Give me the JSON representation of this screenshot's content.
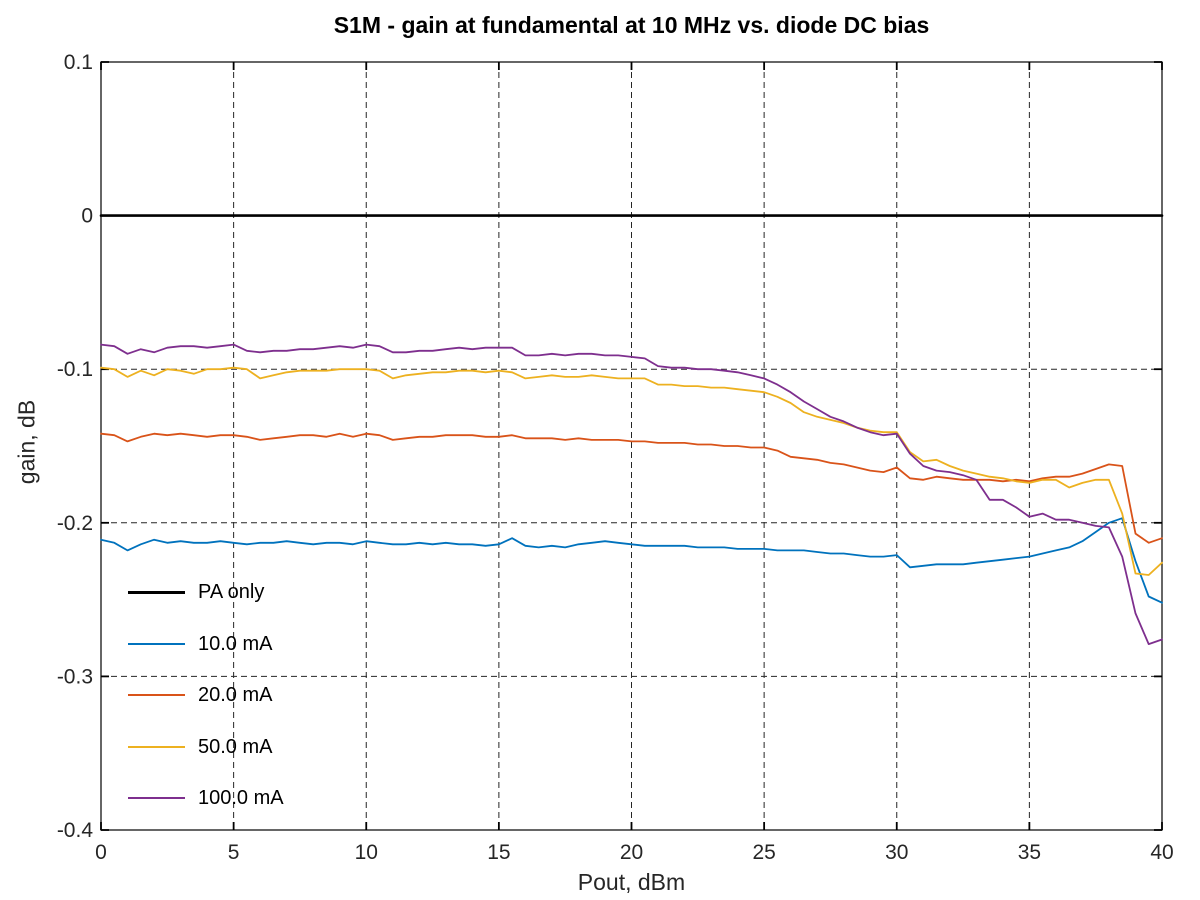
{
  "chart_data": {
    "type": "line",
    "title": "S1M - gain at fundamental at 10 MHz vs. diode DC bias",
    "xlabel": "Pout, dBm",
    "ylabel": "gain, dB",
    "xlim": [
      0,
      40
    ],
    "ylim": [
      -0.4,
      0.1
    ],
    "x_ticks": [
      0,
      5,
      10,
      15,
      20,
      25,
      30,
      35,
      40
    ],
    "y_ticks": [
      {
        "v": 0.1,
        "label": "0.1"
      },
      {
        "v": 0,
        "label": "0"
      },
      {
        "v": -0.1,
        "label": "-0.1"
      },
      {
        "v": -0.2,
        "label": "-0.2"
      },
      {
        "v": -0.3,
        "label": "-0.3"
      },
      {
        "v": -0.4,
        "label": "-0.4"
      }
    ],
    "grid": {
      "x_lines": [
        5,
        10,
        15,
        20,
        25,
        30,
        35
      ],
      "y_lines": [
        -0.1,
        -0.2,
        -0.3
      ],
      "line_style": "dashed",
      "color": "#262626"
    },
    "axis_color": "#000000",
    "tick_label_color": "#262626",
    "legend_position": "inside-bottom-left",
    "x_start": 0,
    "x_step": 0.5,
    "series": [
      {
        "name": "PA only",
        "color": "#000000",
        "width": 2.6,
        "x": [
          0,
          40
        ],
        "values": [
          0,
          0
        ]
      },
      {
        "name": "10.0 mA",
        "color": "#0072BD",
        "width": 1.8,
        "values": [
          -0.211,
          -0.213,
          -0.218,
          -0.214,
          -0.211,
          -0.213,
          -0.212,
          -0.213,
          -0.213,
          -0.212,
          -0.213,
          -0.214,
          -0.213,
          -0.213,
          -0.212,
          -0.213,
          -0.214,
          -0.213,
          -0.213,
          -0.214,
          -0.212,
          -0.213,
          -0.214,
          -0.214,
          -0.213,
          -0.214,
          -0.213,
          -0.214,
          -0.214,
          -0.215,
          -0.214,
          -0.21,
          -0.215,
          -0.216,
          -0.215,
          -0.216,
          -0.214,
          -0.213,
          -0.212,
          -0.213,
          -0.214,
          -0.215,
          -0.215,
          -0.215,
          -0.215,
          -0.216,
          -0.216,
          -0.216,
          -0.217,
          -0.217,
          -0.217,
          -0.218,
          -0.218,
          -0.218,
          -0.219,
          -0.22,
          -0.22,
          -0.221,
          -0.222,
          -0.222,
          -0.221,
          -0.229,
          -0.228,
          -0.227,
          -0.227,
          -0.227,
          -0.226,
          -0.225,
          -0.224,
          -0.223,
          -0.222,
          -0.22,
          -0.218,
          -0.216,
          -0.212,
          -0.206,
          -0.2,
          -0.197,
          -0.225,
          -0.248,
          -0.252
        ]
      },
      {
        "name": "20.0 mA",
        "color": "#D95319",
        "width": 1.8,
        "values": [
          -0.142,
          -0.143,
          -0.147,
          -0.144,
          -0.142,
          -0.143,
          -0.142,
          -0.143,
          -0.144,
          -0.143,
          -0.143,
          -0.144,
          -0.146,
          -0.145,
          -0.144,
          -0.143,
          -0.143,
          -0.144,
          -0.142,
          -0.144,
          -0.142,
          -0.143,
          -0.146,
          -0.145,
          -0.144,
          -0.144,
          -0.143,
          -0.143,
          -0.143,
          -0.144,
          -0.144,
          -0.143,
          -0.145,
          -0.145,
          -0.145,
          -0.146,
          -0.145,
          -0.146,
          -0.146,
          -0.146,
          -0.147,
          -0.147,
          -0.148,
          -0.148,
          -0.148,
          -0.149,
          -0.149,
          -0.15,
          -0.15,
          -0.151,
          -0.151,
          -0.153,
          -0.157,
          -0.158,
          -0.159,
          -0.161,
          -0.162,
          -0.164,
          -0.166,
          -0.167,
          -0.164,
          -0.171,
          -0.172,
          -0.17,
          -0.171,
          -0.172,
          -0.172,
          -0.172,
          -0.173,
          -0.172,
          -0.173,
          -0.171,
          -0.17,
          -0.17,
          -0.168,
          -0.165,
          -0.162,
          -0.163,
          -0.207,
          -0.213,
          -0.21
        ]
      },
      {
        "name": "50.0 mA",
        "color": "#EDB120",
        "width": 1.8,
        "values": [
          -0.099,
          -0.1,
          -0.105,
          -0.101,
          -0.104,
          -0.1,
          -0.101,
          -0.103,
          -0.1,
          -0.1,
          -0.099,
          -0.1,
          -0.106,
          -0.104,
          -0.102,
          -0.101,
          -0.101,
          -0.101,
          -0.1,
          -0.1,
          -0.1,
          -0.101,
          -0.106,
          -0.104,
          -0.103,
          -0.102,
          -0.102,
          -0.101,
          -0.101,
          -0.102,
          -0.101,
          -0.102,
          -0.106,
          -0.105,
          -0.104,
          -0.105,
          -0.105,
          -0.104,
          -0.105,
          -0.106,
          -0.106,
          -0.106,
          -0.11,
          -0.11,
          -0.111,
          -0.111,
          -0.112,
          -0.112,
          -0.113,
          -0.114,
          -0.115,
          -0.118,
          -0.122,
          -0.128,
          -0.131,
          -0.133,
          -0.135,
          -0.138,
          -0.14,
          -0.141,
          -0.141,
          -0.154,
          -0.16,
          -0.159,
          -0.163,
          -0.166,
          -0.168,
          -0.17,
          -0.171,
          -0.173,
          -0.174,
          -0.172,
          -0.172,
          -0.177,
          -0.174,
          -0.172,
          -0.172,
          -0.194,
          -0.233,
          -0.234,
          -0.226
        ]
      },
      {
        "name": "100.0 mA",
        "color": "#7E2F8E",
        "width": 1.8,
        "values": [
          -0.084,
          -0.085,
          -0.09,
          -0.087,
          -0.089,
          -0.086,
          -0.085,
          -0.085,
          -0.086,
          -0.085,
          -0.084,
          -0.088,
          -0.089,
          -0.088,
          -0.088,
          -0.087,
          -0.087,
          -0.086,
          -0.085,
          -0.086,
          -0.084,
          -0.085,
          -0.089,
          -0.089,
          -0.088,
          -0.088,
          -0.087,
          -0.086,
          -0.087,
          -0.086,
          -0.086,
          -0.086,
          -0.091,
          -0.091,
          -0.09,
          -0.091,
          -0.09,
          -0.09,
          -0.091,
          -0.091,
          -0.092,
          -0.093,
          -0.098,
          -0.099,
          -0.099,
          -0.1,
          -0.1,
          -0.101,
          -0.102,
          -0.104,
          -0.106,
          -0.11,
          -0.115,
          -0.121,
          -0.126,
          -0.131,
          -0.134,
          -0.138,
          -0.141,
          -0.143,
          -0.142,
          -0.155,
          -0.163,
          -0.166,
          -0.167,
          -0.169,
          -0.172,
          -0.185,
          -0.185,
          -0.19,
          -0.196,
          -0.194,
          -0.198,
          -0.198,
          -0.2,
          -0.202,
          -0.203,
          -0.222,
          -0.259,
          -0.279,
          -0.276
        ]
      }
    ]
  }
}
